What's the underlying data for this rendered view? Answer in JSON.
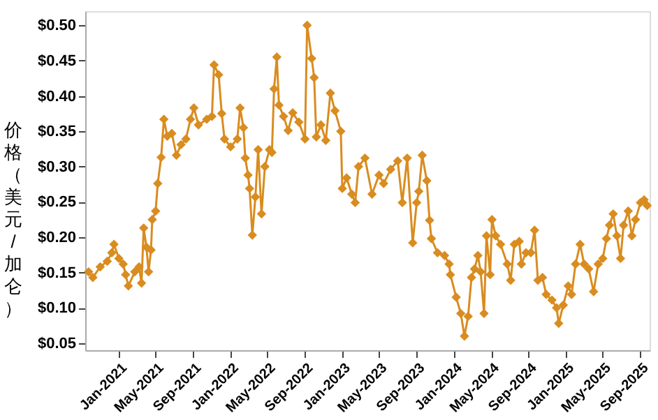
{
  "chart_data": {
    "type": "line",
    "ylabel": "价格（美元/加仑）",
    "x": [
      "2020-09-24",
      "2020-10-08",
      "2020-11-01",
      "2020-11-24",
      "2020-12-09",
      "2020-12-16",
      "2021-01-01",
      "2021-01-15",
      "2021-01-23",
      "2021-02-01",
      "2021-02-22",
      "2021-03-08",
      "2021-03-16",
      "2021-03-23",
      "2021-04-01",
      "2021-04-08",
      "2021-04-16",
      "2021-04-20",
      "2021-05-01",
      "2021-05-08",
      "2021-05-19",
      "2021-05-28",
      "2021-06-08",
      "2021-06-23",
      "2021-07-08",
      "2021-07-23",
      "2021-08-08",
      "2021-08-23",
      "2021-09-03",
      "2021-09-18",
      "2021-10-15",
      "2021-11-01",
      "2021-11-08",
      "2021-11-23",
      "2021-12-03",
      "2021-12-12",
      "2022-01-01",
      "2022-01-23",
      "2022-02-01",
      "2022-02-12",
      "2022-02-18",
      "2022-02-27",
      "2022-03-04",
      "2022-03-13",
      "2022-03-23",
      "2022-04-01",
      "2022-04-12",
      "2022-04-23",
      "2022-05-08",
      "2022-05-16",
      "2022-05-23",
      "2022-06-01",
      "2022-06-08",
      "2022-06-23",
      "2022-07-08",
      "2022-07-23",
      "2022-08-12",
      "2022-09-01",
      "2022-09-08",
      "2022-09-23",
      "2022-10-01",
      "2022-10-08",
      "2022-10-23",
      "2022-11-08",
      "2022-11-23",
      "2022-12-08",
      "2022-12-27",
      "2023-01-01",
      "2023-01-15",
      "2023-02-01",
      "2023-02-12",
      "2023-02-23",
      "2023-03-16",
      "2023-04-08",
      "2023-05-01",
      "2023-05-16",
      "2023-06-08",
      "2023-07-01",
      "2023-07-16",
      "2023-08-01",
      "2023-08-19",
      "2023-09-01",
      "2023-09-08",
      "2023-09-19",
      "2023-10-04",
      "2023-10-13",
      "2023-10-19",
      "2023-11-08",
      "2023-12-01",
      "2023-12-16",
      "2023-12-20",
      "2024-01-08",
      "2024-01-23",
      "2024-02-04",
      "2024-02-16",
      "2024-02-27",
      "2024-03-08",
      "2024-03-19",
      "2024-03-28",
      "2024-04-08",
      "2024-04-16",
      "2024-04-28",
      "2024-05-04",
      "2024-05-16",
      "2024-06-01",
      "2024-06-23",
      "2024-07-04",
      "2024-07-16",
      "2024-08-01",
      "2024-08-08",
      "2024-08-23",
      "2024-09-08",
      "2024-09-20",
      "2024-10-01",
      "2024-10-16",
      "2024-10-28",
      "2024-11-16",
      "2024-12-01",
      "2024-12-08",
      "2024-12-23",
      "2025-01-08",
      "2025-01-19",
      "2025-02-01",
      "2025-02-16",
      "2025-03-01",
      "2025-03-16",
      "2025-04-01",
      "2025-04-16",
      "2025-05-01",
      "2025-05-13",
      "2025-05-23",
      "2025-06-04",
      "2025-06-16",
      "2025-06-28",
      "2025-07-08",
      "2025-07-23",
      "2025-08-04",
      "2025-08-16",
      "2025-09-01",
      "2025-09-13",
      "2025-09-23"
    ],
    "series": [
      {
        "color": "#d98c1f",
        "values": [
          0.151,
          0.143,
          0.158,
          0.166,
          0.178,
          0.19,
          0.17,
          0.162,
          0.147,
          0.131,
          0.151,
          0.158,
          0.135,
          0.213,
          0.186,
          0.151,
          0.182,
          0.225,
          0.237,
          0.276,
          0.313,
          0.367,
          0.343,
          0.347,
          0.316,
          0.331,
          0.339,
          0.367,
          0.383,
          0.359,
          0.367,
          0.371,
          0.444,
          0.43,
          0.375,
          0.339,
          0.328,
          0.339,
          0.383,
          0.355,
          0.312,
          0.288,
          0.269,
          0.203,
          0.257,
          0.324,
          0.233,
          0.3,
          0.324,
          0.32,
          0.41,
          0.455,
          0.387,
          0.371,
          0.351,
          0.376,
          0.363,
          0.339,
          0.5,
          0.453,
          0.426,
          0.342,
          0.359,
          0.337,
          0.404,
          0.379,
          0.35,
          0.269,
          0.284,
          0.261,
          0.249,
          0.3,
          0.312,
          0.261,
          0.288,
          0.276,
          0.296,
          0.308,
          0.249,
          0.312,
          0.192,
          0.249,
          0.265,
          0.316,
          0.28,
          0.224,
          0.198,
          0.178,
          0.174,
          0.162,
          0.147,
          0.115,
          0.092,
          0.06,
          0.088,
          0.143,
          0.155,
          0.174,
          0.151,
          0.092,
          0.202,
          0.147,
          0.225,
          0.202,
          0.19,
          0.162,
          0.139,
          0.19,
          0.194,
          0.162,
          0.178,
          0.178,
          0.21,
          0.139,
          0.143,
          0.119,
          0.111,
          0.1,
          0.078,
          0.104,
          0.131,
          0.119,
          0.162,
          0.19,
          0.162,
          0.155,
          0.123,
          0.162,
          0.17,
          0.198,
          0.217,
          0.233,
          0.202,
          0.17,
          0.217,
          0.237,
          0.202,
          0.225,
          0.249,
          0.253,
          0.245
        ]
      }
    ],
    "xlim": [
      "2020-09-13",
      "2025-10-01"
    ],
    "xticks": [
      {
        "value": "2021-01-01",
        "label": "Jan-2021"
      },
      {
        "value": "2021-05-01",
        "label": "May-2021"
      },
      {
        "value": "2021-09-01",
        "label": "Sep-2021"
      },
      {
        "value": "2022-01-01",
        "label": "Jan-2022"
      },
      {
        "value": "2022-05-01",
        "label": "May-2022"
      },
      {
        "value": "2022-09-01",
        "label": "Sep-2022"
      },
      {
        "value": "2023-01-01",
        "label": "Jan-2023"
      },
      {
        "value": "2023-05-01",
        "label": "May-2023"
      },
      {
        "value": "2023-09-01",
        "label": "Sep-2023"
      },
      {
        "value": "2024-01-01",
        "label": "Jan-2024"
      },
      {
        "value": "2024-05-01",
        "label": "May-2024"
      },
      {
        "value": "2024-09-01",
        "label": "Sep-2024"
      },
      {
        "value": "2025-01-01",
        "label": "Jan-2025"
      },
      {
        "value": "2025-05-01",
        "label": "May-2025"
      },
      {
        "value": "2025-09-01",
        "label": "Sep-2025"
      }
    ],
    "ylim": [
      0.04,
      0.52
    ],
    "yticks": [
      {
        "value": 0.05,
        "label": "$0.05"
      },
      {
        "value": 0.1,
        "label": "$0.10"
      },
      {
        "value": 0.15,
        "label": "$0.15"
      },
      {
        "value": 0.2,
        "label": "$0.20"
      },
      {
        "value": 0.25,
        "label": "$0.25"
      },
      {
        "value": 0.3,
        "label": "$0.30"
      },
      {
        "value": 0.35,
        "label": "$0.35"
      },
      {
        "value": 0.4,
        "label": "$0.40"
      },
      {
        "value": 0.45,
        "label": "$0.45"
      },
      {
        "value": 0.5,
        "label": "$0.50"
      }
    ],
    "grid": false,
    "marker": "diamond",
    "line_style": "solid"
  }
}
